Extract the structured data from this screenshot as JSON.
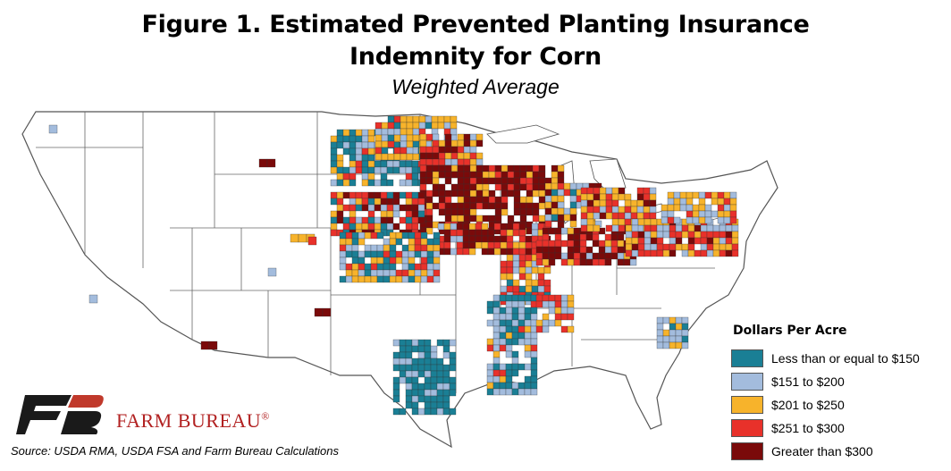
{
  "figure": {
    "title_line1": "Figure 1. Estimated Prevented Planting Insurance",
    "title_line2": "Indemnity for Corn",
    "subtitle": "Weighted Average"
  },
  "legend": {
    "title": "Dollars Per Acre",
    "items": [
      {
        "label": "Less than or equal to $150",
        "color": "#1a7f95"
      },
      {
        "label": "$151 to $200",
        "color": "#a3bcdd"
      },
      {
        "label": "$201 to $250",
        "color": "#f7b32b"
      },
      {
        "label": "$251 to $300",
        "color": "#e8312a"
      },
      {
        "label": "Greater than $300",
        "color": "#7a0a0a"
      }
    ]
  },
  "branding": {
    "name": "FARM BUREAU",
    "mark": "®",
    "logo_icon": "farm-bureau-logo-icon",
    "brand_color": "#b22222"
  },
  "source": "Source: USDA RMA, USDA FSA and Farm Bureau Calculations",
  "map_colors": {
    "state_fill": "#ffffff",
    "state_border": "#555555",
    "water": "#ffffff"
  }
}
